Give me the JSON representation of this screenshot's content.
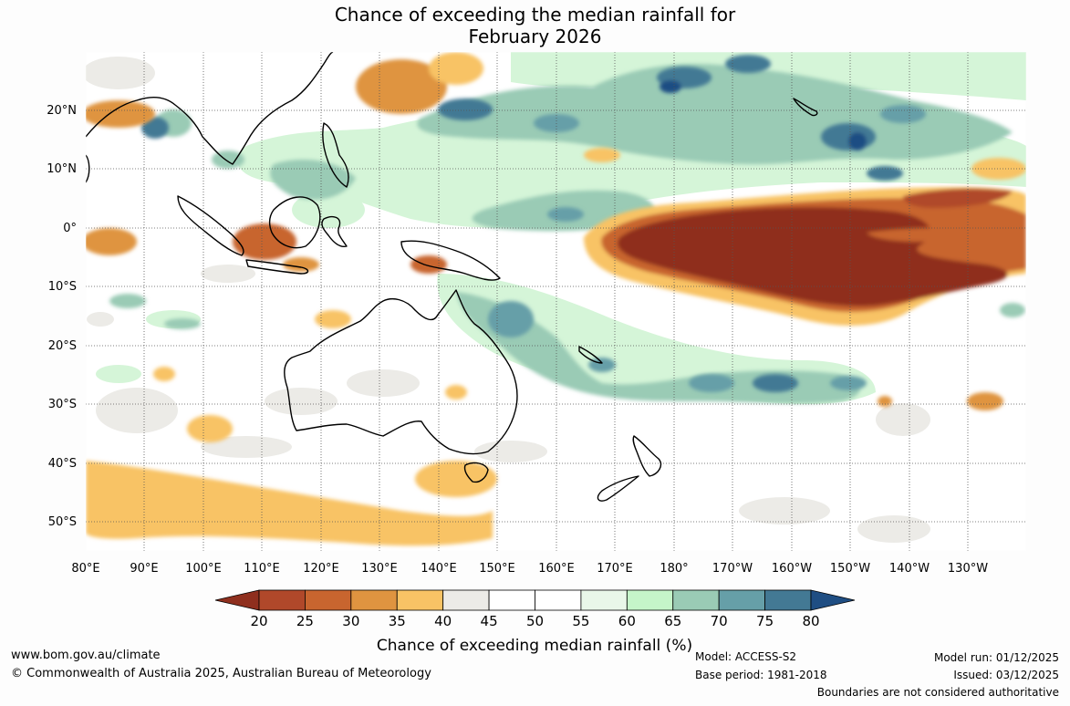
{
  "title": {
    "line1": "Chance of exceeding the median rainfall for",
    "line2": "February 2026"
  },
  "map": {
    "lat_labels": [
      "20°N",
      "10°N",
      "0°",
      "10°S",
      "20°S",
      "30°S",
      "40°S",
      "50°S"
    ],
    "lon_labels": [
      "80°E",
      "90°E",
      "100°E",
      "110°E",
      "120°E",
      "130°E",
      "140°E",
      "150°E",
      "160°E",
      "170°E",
      "180°",
      "170°W",
      "160°W",
      "150°W",
      "140°W",
      "130°W"
    ],
    "description_regions": {
      "dry_core": "equatorial central Pacific",
      "wet_band": "South Pacific convergence zone and north-west Pacific"
    }
  },
  "legend": {
    "title": "Chance of exceeding median rainfall (%)",
    "ticks": [
      "20",
      "25",
      "30",
      "35",
      "40",
      "45",
      "50",
      "55",
      "60",
      "65",
      "70",
      "75",
      "80"
    ],
    "colors": [
      "#8f2f1e",
      "#b0482a",
      "#c8652f",
      "#df9440",
      "#f8c365",
      "#ecebe7",
      "#ffffff",
      "#ffffff",
      "#e9f7e9",
      "#c5f5c9",
      "#9acbb5",
      "#669fa8",
      "#437994",
      "#1f4e83"
    ]
  },
  "footer": {
    "website": "www.bom.gov.au/climate",
    "copyright": "© Commonwealth of Australia 2025, Australian Bureau of Meteorology",
    "model": "Model: ACCESS-S2",
    "base_period": "Base period: 1981-2018",
    "model_run": "Model run: 01/12/2025",
    "issued": "Issued: 03/12/2025",
    "disclaimer": "Boundaries are not considered authoritative"
  }
}
